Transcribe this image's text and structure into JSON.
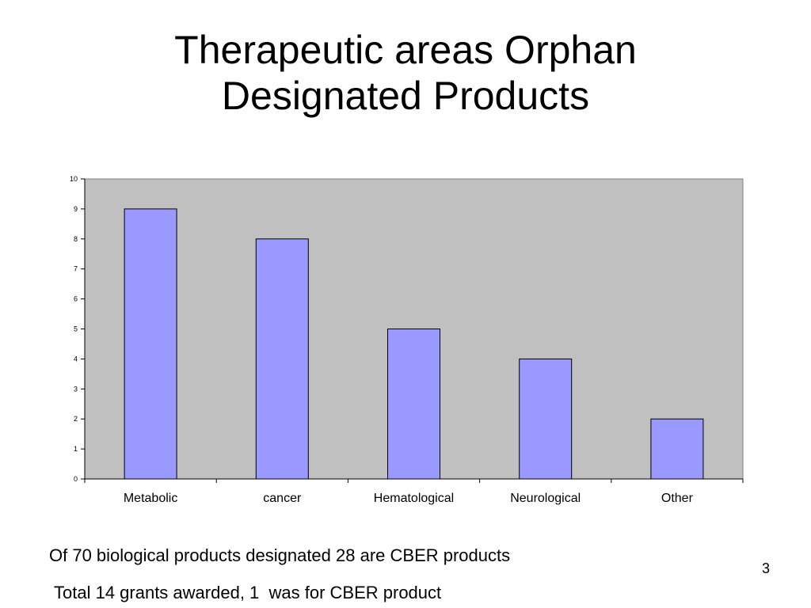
{
  "slide": {
    "title_lines": [
      "Therapeutic areas Orphan",
      "Designated Products"
    ],
    "notes": [
      "Of 70 biological products designated 28 are CBER products",
      "Total 14 grants awarded, 1  was for CBER product"
    ],
    "slide_number": "3"
  },
  "colors": {
    "plot_background": "#c0c0c0",
    "bar_fill": "#9999ff",
    "bar_stroke": "#000000",
    "axis": "#000000"
  },
  "chart_data": {
    "type": "bar",
    "categories": [
      "Metabolic",
      "cancer",
      "Hematological",
      "Neurological",
      "Other"
    ],
    "values": [
      9,
      8,
      5,
      4,
      2
    ],
    "ylim": [
      0,
      10
    ],
    "yticks": [
      "0",
      "1",
      "2",
      "3",
      "4",
      "5",
      "6",
      "7",
      "8",
      "9",
      "10"
    ],
    "grid": false,
    "legend": "none"
  }
}
